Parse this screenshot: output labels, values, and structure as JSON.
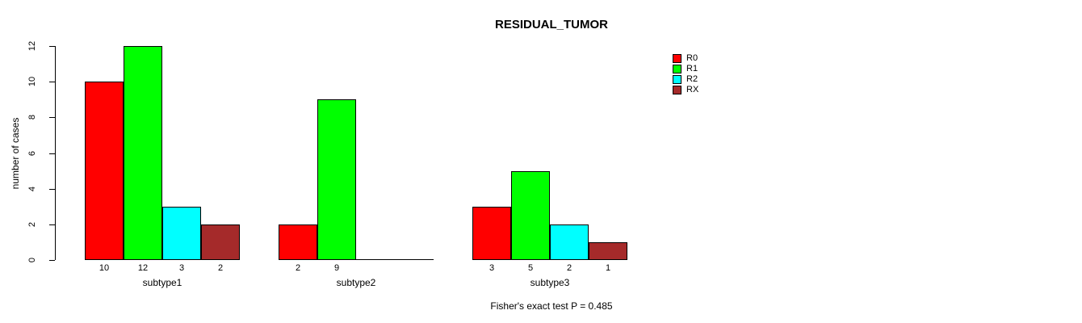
{
  "chart_data": {
    "type": "bar",
    "title": "RESIDUAL_TUMOR",
    "ylabel": "number of cases",
    "annotation": "Fisher's exact test P = 0.485",
    "categories": [
      "subtype1",
      "subtype2",
      "subtype3"
    ],
    "series": [
      {
        "name": "R0",
        "color": "#FF0000",
        "values": [
          10,
          2,
          3
        ]
      },
      {
        "name": "R1",
        "color": "#00FF00",
        "values": [
          12,
          9,
          5
        ]
      },
      {
        "name": "R2",
        "color": "#00FFFF",
        "values": [
          3,
          0,
          2
        ]
      },
      {
        "name": "RX",
        "color": "#A52A2A",
        "values": [
          2,
          0,
          1
        ]
      }
    ],
    "bar_value_labels": {
      "subtype1": [
        10,
        12,
        3,
        2
      ],
      "subtype2": [
        2,
        9,
        null,
        null
      ],
      "subtype3": [
        3,
        5,
        2,
        1
      ]
    },
    "ylim": [
      0,
      12
    ],
    "yticks": [
      0,
      2,
      4,
      6,
      8,
      10,
      12
    ],
    "grid": false,
    "legend_position": "right",
    "colors": {
      "background": "#FFFFFF",
      "axis": "#000000",
      "bar_border": "#000000"
    }
  }
}
